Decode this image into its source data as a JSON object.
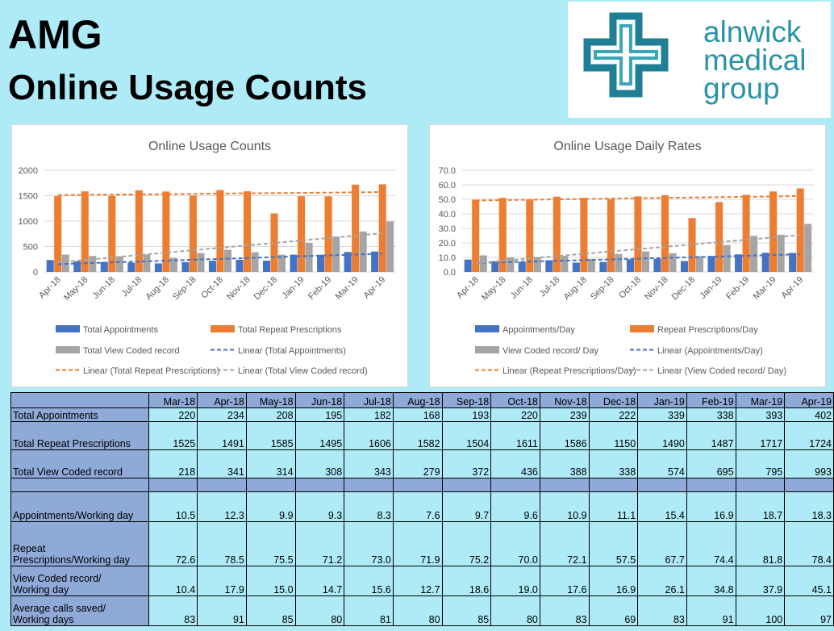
{
  "header": {
    "line1": "AMG",
    "line2": "Online Usage Counts"
  },
  "logo": {
    "line1": "alnwick",
    "line2": "medical",
    "line3": "group",
    "color": "#2a93a7"
  },
  "colors": {
    "blue": "#4472c4",
    "orange": "#ed7d31",
    "gray": "#a5a5a5",
    "background": "#aeebf7",
    "table_label": "#8fa9d9"
  },
  "chart_data": [
    {
      "type": "bar",
      "title": "Online Usage Counts",
      "categories": [
        "Apr-18",
        "May-18",
        "Jun-18",
        "Jul-18",
        "Aug-18",
        "Sep-18",
        "Oct-18",
        "Nov-18",
        "Dec-18",
        "Jan-19",
        "Feb-19",
        "Mar-19",
        "Apr-19"
      ],
      "ylim": [
        0,
        2000
      ],
      "yticks": [
        "0",
        "500",
        "1000",
        "1500",
        "2000"
      ],
      "grid": true,
      "legend_position": "bottom",
      "series": [
        {
          "name": "Total Appointments",
          "color": "#4472c4",
          "values": [
            234,
            208,
            195,
            182,
            168,
            193,
            220,
            239,
            222,
            339,
            338,
            393,
            402
          ]
        },
        {
          "name": "Total Repeat Prescriptions",
          "color": "#ed7d31",
          "values": [
            1491,
            1585,
            1495,
            1606,
            1582,
            1504,
            1611,
            1586,
            1150,
            1490,
            1487,
            1717,
            1724
          ]
        },
        {
          "name": "Total View Coded record",
          "color": "#a5a5a5",
          "values": [
            341,
            314,
            308,
            343,
            279,
            372,
            436,
            388,
            338,
            574,
            695,
            795,
            993
          ]
        }
      ],
      "trendlines": [
        {
          "name": "Linear (Total Appointments)",
          "color": "#4472c4"
        },
        {
          "name": "Linear (Total Repeat Prescriptions)",
          "color": "#ed7d31"
        },
        {
          "name": "Linear (Total View Coded record)",
          "color": "#a5a5a5"
        }
      ]
    },
    {
      "type": "bar",
      "title": "Online Usage Daily Rates",
      "categories": [
        "Apr-18",
        "May-18",
        "Jun-18",
        "Jul-18",
        "Aug-18",
        "Sep-18",
        "Oct-18",
        "Nov-18",
        "Dec-18",
        "Jan-19",
        "Feb-19",
        "Mar-19",
        "Apr-19"
      ],
      "ylim": [
        0,
        70
      ],
      "yticks": [
        "0.0",
        "10.0",
        "20.0",
        "30.0",
        "40.0",
        "50.0",
        "60.0",
        "70.0"
      ],
      "grid": true,
      "legend_position": "bottom",
      "series": [
        {
          "name": "Appointments/Day",
          "color": "#4472c4",
          "values": [
            8.5,
            7.4,
            6.9,
            8.0,
            6.4,
            6.9,
            8.7,
            9.0,
            7.5,
            11.0,
            12.1,
            13.2,
            13.1
          ]
        },
        {
          "name": "Repeat Prescriptions/Day",
          "color": "#ed7d31",
          "values": [
            49.7,
            51.0,
            49.8,
            51.8,
            51.0,
            50.1,
            52.0,
            52.8,
            37.1,
            48.1,
            53.1,
            55.4,
            57.5
          ]
        },
        {
          "name": "View Coded record/ Day",
          "color": "#a5a5a5",
          "values": [
            11.4,
            10.1,
            10.3,
            11.1,
            9.0,
            12.4,
            14.1,
            12.9,
            10.9,
            18.5,
            24.8,
            25.6,
            33.1
          ]
        }
      ],
      "trendlines": [
        {
          "name": "Linear (Appointments/Day)",
          "color": "#4472c4"
        },
        {
          "name": "Linear (Repeat Prescriptions/Day)",
          "color": "#ed7d31"
        },
        {
          "name": "Linear (View Coded record/ Day)",
          "color": "#a5a5a5"
        }
      ]
    },
    {
      "type": "table",
      "columns": [
        "Mar-18",
        "Apr-18",
        "May-18",
        "Jun-18",
        "Jul-18",
        "Aug-18",
        "Sep-18",
        "Oct-18",
        "Nov-18",
        "Dec-18",
        "Jan-19",
        "Feb-19",
        "Mar-19",
        "Apr-19"
      ],
      "rows": [
        {
          "label": [
            "Total Appointments"
          ],
          "values": [
            "220",
            "234",
            "208",
            "195",
            "182",
            "168",
            "193",
            "220",
            "239",
            "222",
            "339",
            "338",
            "393",
            "402"
          ]
        },
        {
          "label": [
            "Total Repeat Prescriptions"
          ],
          "values": [
            "1525",
            "1491",
            "1585",
            "1495",
            "1606",
            "1582",
            "1504",
            "1611",
            "1586",
            "1150",
            "1490",
            "1487",
            "1717",
            "1724"
          ]
        },
        {
          "label": [
            "Total View Coded  record"
          ],
          "values": [
            "218",
            "341",
            "314",
            "308",
            "343",
            "279",
            "372",
            "436",
            "388",
            "338",
            "574",
            "695",
            "795",
            "993"
          ]
        },
        {
          "label": [],
          "values": []
        },
        {
          "label": [
            "Appointments/Working  day"
          ],
          "values": [
            "10.5",
            "12.3",
            "9.9",
            "9.3",
            "8.3",
            "7.6",
            "9.7",
            "9.6",
            "10.9",
            "11.1",
            "15.4",
            "16.9",
            "18.7",
            "18.3"
          ]
        },
        {
          "label": [
            "Repeat",
            "Prescriptions/Working  day"
          ],
          "values": [
            "72.6",
            "78.5",
            "75.5",
            "71.2",
            "73.0",
            "71.9",
            "75.2",
            "70.0",
            "72.1",
            "57.5",
            "67.7",
            "74.4",
            "81.8",
            "78.4"
          ]
        },
        {
          "label": [
            "View Coded record/",
            "Working  day"
          ],
          "values": [
            "10.4",
            "17.9",
            "15.0",
            "14.7",
            "15.6",
            "12.7",
            "18.6",
            "19.0",
            "17.6",
            "16.9",
            "26.1",
            "34.8",
            "37.9",
            "45.1"
          ]
        },
        {
          "label": [
            "Average calls saved/",
            "Working  days"
          ],
          "values": [
            "83",
            "91",
            "85",
            "80",
            "81",
            "80",
            "85",
            "80",
            "83",
            "69",
            "83",
            "91",
            "100",
            "97"
          ]
        }
      ]
    }
  ]
}
